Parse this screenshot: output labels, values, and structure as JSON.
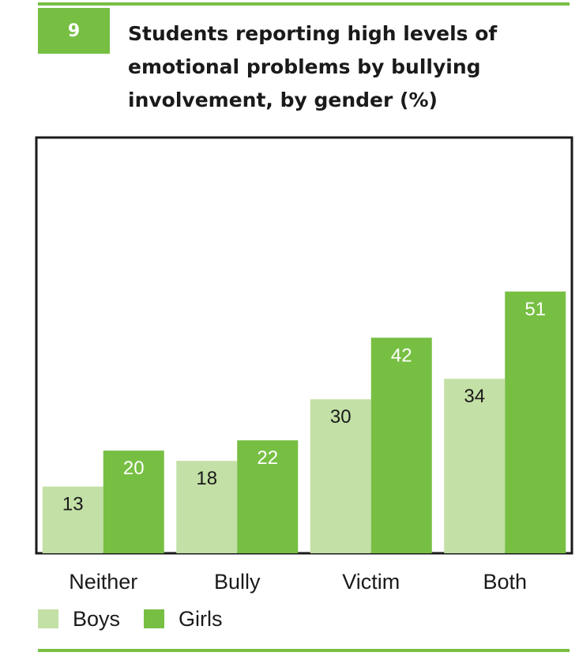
{
  "figure": {
    "number": "9",
    "title": "Students reporting high levels of emotional problems by bullying involvement, by gender (%)"
  },
  "colors": {
    "accent": "#77bf43",
    "boys": "#c3e0a6",
    "girls": "#77bf43",
    "frame": "#1a1a1a"
  },
  "chart_data": {
    "type": "bar",
    "title": "Students reporting high levels of emotional problems by bullying involvement, by gender (%)",
    "categories": [
      "Neither",
      "Bully",
      "Victim",
      "Both"
    ],
    "series": [
      {
        "name": "Boys",
        "values": [
          13,
          18,
          30,
          34
        ]
      },
      {
        "name": "Girls",
        "values": [
          20,
          22,
          42,
          51
        ]
      }
    ],
    "xlabel": "",
    "ylabel": "",
    "ylim": [
      0,
      81
    ],
    "grid": false,
    "legend_position": "bottom-left",
    "data_labels": true
  }
}
